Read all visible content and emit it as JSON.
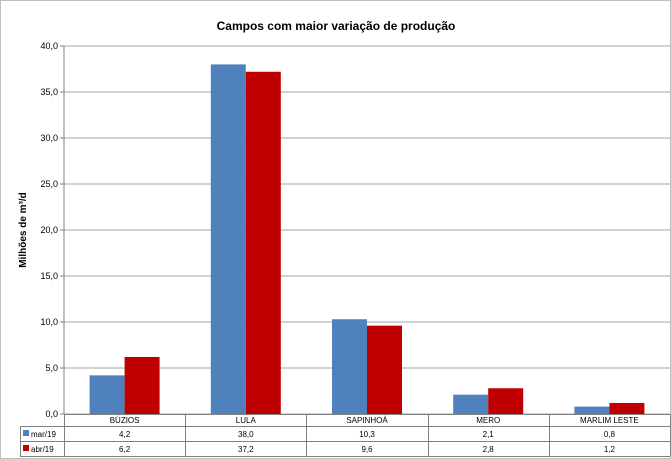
{
  "chart_data": {
    "type": "bar",
    "title": "Campos com maior variação de produção",
    "ylabel": "Milhões de m³/d",
    "xlabel": "",
    "ylim": [
      0,
      40
    ],
    "yticks": [
      "0,0",
      "5,0",
      "10,0",
      "15,0",
      "20,0",
      "25,0",
      "30,0",
      "35,0",
      "40,0"
    ],
    "categories": [
      "BÚZIOS",
      "LULA",
      "SAPINHOÁ",
      "MERO",
      "MARLIM LESTE"
    ],
    "series": [
      {
        "name": "mar/19",
        "color": "#4f81bd",
        "values": [
          4.2,
          38.0,
          10.3,
          2.1,
          0.8
        ],
        "labels": [
          "4,2",
          "38,0",
          "10,3",
          "2,1",
          "0,8"
        ]
      },
      {
        "name": "abr/19",
        "color": "#c00000",
        "values": [
          6.2,
          37.2,
          9.6,
          2.8,
          1.2
        ],
        "labels": [
          "6,2",
          "37,2",
          "9,6",
          "2,8",
          "1,2"
        ]
      }
    ],
    "grid": true,
    "legend": "data table"
  }
}
